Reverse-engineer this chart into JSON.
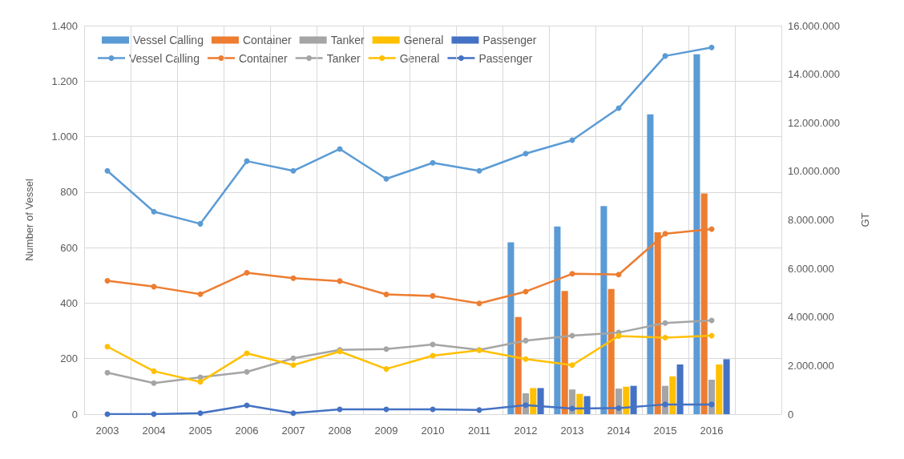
{
  "chart_data": {
    "type": "bar",
    "ylabel": "Number of Vessel",
    "y2label": "GT",
    "categories": [
      "2003",
      "2004",
      "2005",
      "2006",
      "2007",
      "2008",
      "2009",
      "2010",
      "2011",
      "2012",
      "2013",
      "2014",
      "2015",
      "2016",
      null
    ],
    "ylim": [
      0,
      1400
    ],
    "yticks": [
      0,
      200,
      400,
      600,
      800,
      {
        "value": 1000,
        "label": "1.000"
      },
      {
        "value": 1200,
        "label": "1.200"
      },
      {
        "value": 1400,
        "label": "1.400"
      }
    ],
    "y2lim": [
      0,
      16000000
    ],
    "y2ticks": [
      0,
      {
        "value": 2000000,
        "label": "2.000.000"
      },
      {
        "value": 4000000,
        "label": "4.000.000"
      },
      {
        "value": 6000000,
        "label": "6.000.000"
      },
      {
        "value": 8000000,
        "label": "8.000.000"
      },
      {
        "value": 10000000,
        "label": "10.000.000"
      },
      {
        "value": 12000000,
        "label": "12.000.000"
      },
      {
        "value": 14000000,
        "label": "14.000.000"
      },
      {
        "value": 16000000,
        "label": "16.000.000"
      }
    ],
    "grid": true,
    "legend": "top",
    "marker": "circle",
    "line_style": "solid",
    "series": [
      {
        "name": "Vessel Calling",
        "type": "bar",
        "color": "#5b9bd5",
        "values": [
          null,
          null,
          null,
          null,
          null,
          null,
          null,
          null,
          null,
          619,
          676,
          750,
          1080,
          1297,
          null
        ]
      },
      {
        "name": "Container",
        "type": "bar",
        "color": "#ed7d31",
        "values": [
          null,
          null,
          null,
          null,
          null,
          null,
          null,
          null,
          null,
          350,
          444,
          451,
          655,
          795,
          null
        ]
      },
      {
        "name": "Tanker",
        "type": "bar",
        "color": "#a5a5a5",
        "values": [
          null,
          null,
          null,
          null,
          null,
          null,
          null,
          null,
          null,
          75,
          89,
          92,
          102,
          124,
          null
        ]
      },
      {
        "name": "General",
        "type": "bar",
        "color": "#ffc000",
        "values": [
          null,
          null,
          null,
          null,
          null,
          null,
          null,
          null,
          null,
          94,
          73,
          99,
          136,
          179,
          null
        ]
      },
      {
        "name": "Passenger",
        "type": "bar",
        "color": "#4472c4",
        "values": [
          null,
          null,
          null,
          null,
          null,
          null,
          null,
          null,
          null,
          94,
          65,
          102,
          179,
          198,
          null
        ]
      },
      {
        "name": "Vessel Calling",
        "type": "line",
        "axis": "y2",
        "color": "#5b9bd5",
        "values": [
          10020000,
          8340000,
          7840000,
          10420000,
          10020000,
          10920000,
          9690000,
          10350000,
          10020000,
          10730000,
          11280000,
          12600000,
          14750000,
          15100000,
          null
        ]
      },
      {
        "name": "Container",
        "type": "line",
        "axis": "y2",
        "color": "#ed7d31",
        "values": [
          5490000,
          5250000,
          4940000,
          5820000,
          5600000,
          5480000,
          4930000,
          4870000,
          4560000,
          5050000,
          5780000,
          5750000,
          7430000,
          7620000,
          null
        ]
      },
      {
        "name": "Tanker",
        "type": "line",
        "axis": "y2",
        "color": "#a5a5a5",
        "values": [
          1710000,
          1280000,
          1520000,
          1740000,
          2300000,
          2650000,
          2680000,
          2870000,
          2650000,
          3030000,
          3230000,
          3360000,
          3750000,
          3860000,
          null
        ]
      },
      {
        "name": "General",
        "type": "line",
        "axis": "y2",
        "color": "#ffc000",
        "values": [
          2780000,
          1770000,
          1330000,
          2510000,
          2020000,
          2580000,
          1860000,
          2410000,
          2630000,
          2270000,
          2020000,
          3220000,
          3150000,
          3230000,
          null
        ]
      },
      {
        "name": "Passenger",
        "type": "line",
        "axis": "y2",
        "color": "#4472c4",
        "values": [
          0,
          0,
          40000,
          360000,
          40000,
          200000,
          200000,
          200000,
          170000,
          370000,
          230000,
          250000,
          400000,
          400000,
          null
        ]
      }
    ]
  }
}
